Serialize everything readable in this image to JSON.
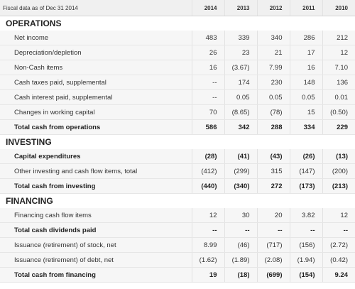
{
  "header": {
    "label": "Fiscal data as of Dec 31 2014",
    "years": [
      "2014",
      "2013",
      "2012",
      "2011",
      "2010"
    ]
  },
  "sections": [
    {
      "title": "OPERATIONS",
      "rows": [
        {
          "label": "Net income",
          "bold": false,
          "values": [
            "483",
            "339",
            "340",
            "286",
            "212"
          ]
        },
        {
          "label": "Depreciation/depletion",
          "bold": false,
          "values": [
            "26",
            "23",
            "21",
            "17",
            "12"
          ]
        },
        {
          "label": "Non-Cash items",
          "bold": false,
          "values": [
            "16",
            "(3.67)",
            "7.99",
            "16",
            "7.10"
          ]
        },
        {
          "label": "Cash taxes paid, supplemental",
          "bold": false,
          "values": [
            "--",
            "174",
            "230",
            "148",
            "136"
          ]
        },
        {
          "label": "Cash interest paid, supplemental",
          "bold": false,
          "values": [
            "--",
            "0.05",
            "0.05",
            "0.05",
            "0.01"
          ]
        },
        {
          "label": "Changes in working capital",
          "bold": false,
          "values": [
            "70",
            "(8.65)",
            "(78)",
            "15",
            "(0.50)"
          ]
        },
        {
          "label": "Total cash from operations",
          "bold": true,
          "values": [
            "586",
            "342",
            "288",
            "334",
            "229"
          ]
        }
      ]
    },
    {
      "title": "INVESTING",
      "rows": [
        {
          "label": "Capital expenditures",
          "bold": true,
          "values": [
            "(28)",
            "(41)",
            "(43)",
            "(26)",
            "(13)"
          ]
        },
        {
          "label": "Other investing and cash flow items, total",
          "bold": false,
          "values": [
            "(412)",
            "(299)",
            "315",
            "(147)",
            "(200)"
          ]
        },
        {
          "label": "Total cash from investing",
          "bold": true,
          "values": [
            "(440)",
            "(340)",
            "272",
            "(173)",
            "(213)"
          ]
        }
      ]
    },
    {
      "title": "FINANCING",
      "rows": [
        {
          "label": "Financing cash flow items",
          "bold": false,
          "values": [
            "12",
            "30",
            "20",
            "3.82",
            "12"
          ]
        },
        {
          "label": "Total cash dividends paid",
          "bold": true,
          "values": [
            "--",
            "--",
            "--",
            "--",
            "--"
          ]
        },
        {
          "label": "Issuance (retirement) of stock, net",
          "bold": false,
          "values": [
            "8.99",
            "(46)",
            "(717)",
            "(156)",
            "(2.72)"
          ]
        },
        {
          "label": "Issuance (retirement) of debt, net",
          "bold": false,
          "values": [
            "(1.62)",
            "(1.89)",
            "(2.08)",
            "(1.94)",
            "(0.42)"
          ]
        },
        {
          "label": "Total cash from financing",
          "bold": true,
          "values": [
            "19",
            "(18)",
            "(699)",
            "(154)",
            "9.24"
          ]
        }
      ]
    }
  ]
}
